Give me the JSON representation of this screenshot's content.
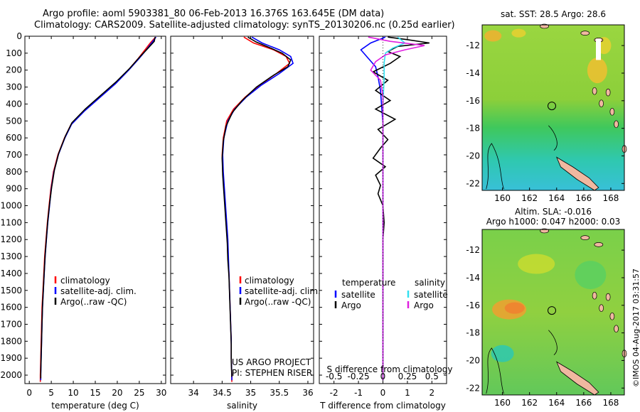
{
  "header": {
    "line1": "Argo profile: aoml 5903381_80 06-Feb-2013 16.376S 163.645E (DM data)",
    "line2": "Climatology: CARS2009. Satellite-adjusted climatology: synTS_20130206.nc (0.25d earlier)"
  },
  "colors": {
    "climatology": "#ff0000",
    "satellite": "#0000ff",
    "argo": "#000000",
    "s_satellite": "#33e0f0",
    "s_argo": "#e020e0"
  },
  "depth_axis": {
    "ticks": [
      0,
      100,
      200,
      300,
      400,
      500,
      600,
      700,
      800,
      900,
      1000,
      1100,
      1200,
      1300,
      1400,
      1500,
      1600,
      1700,
      1800,
      1900,
      2000
    ],
    "range": [
      0,
      2050
    ]
  },
  "chart_data": [
    {
      "type": "line",
      "id": "temperature",
      "xlabel": "temperature (deg C)",
      "ylabel": "",
      "xlim": [
        -1,
        31
      ],
      "ylim": [
        2050,
        0
      ],
      "xticks": [
        0,
        5,
        10,
        15,
        20,
        25,
        30
      ],
      "legend": [
        "climatology",
        "satellite-adj. clim.",
        "Argo(..raw -QC)"
      ],
      "series": [
        {
          "name": "climatology",
          "color": "#ff0000",
          "points": [
            [
              28.7,
              5
            ],
            [
              27.5,
              40
            ],
            [
              26.3,
              80
            ],
            [
              24.8,
              130
            ],
            [
              22.5,
              200
            ],
            [
              19.5,
              280
            ],
            [
              16,
              360
            ],
            [
              12.5,
              440
            ],
            [
              9.5,
              520
            ],
            [
              8,
              600
            ],
            [
              6.5,
              700
            ],
            [
              5.5,
              800
            ],
            [
              4.9,
              900
            ],
            [
              4.5,
              1000
            ],
            [
              4.1,
              1100
            ],
            [
              3.8,
              1200
            ],
            [
              3.5,
              1300
            ],
            [
              3.3,
              1400
            ],
            [
              3.1,
              1500
            ],
            [
              2.9,
              1600
            ],
            [
              2.8,
              1700
            ],
            [
              2.7,
              1800
            ],
            [
              2.6,
              1900
            ],
            [
              2.5,
              2000
            ],
            [
              2.5,
              2040
            ]
          ]
        },
        {
          "name": "satellite-adj. clim.",
          "color": "#0000ff",
          "points": [
            [
              28.8,
              5
            ],
            [
              27.8,
              40
            ],
            [
              26.6,
              80
            ],
            [
              25,
              130
            ],
            [
              22.6,
              200
            ],
            [
              19.6,
              280
            ],
            [
              16.1,
              360
            ],
            [
              12.6,
              440
            ],
            [
              9.6,
              520
            ],
            [
              8.1,
              600
            ],
            [
              6.6,
              700
            ],
            [
              5.6,
              800
            ],
            [
              5,
              900
            ],
            [
              4.6,
              1000
            ],
            [
              4.2,
              1100
            ],
            [
              3.9,
              1200
            ],
            [
              3.6,
              1300
            ],
            [
              3.4,
              1400
            ],
            [
              3.2,
              1500
            ],
            [
              3,
              1600
            ],
            [
              2.9,
              1700
            ],
            [
              2.8,
              1800
            ],
            [
              2.7,
              1900
            ],
            [
              2.6,
              2000
            ],
            [
              2.6,
              2030
            ]
          ]
        },
        {
          "name": "Argo(..raw -QC)",
          "color": "#000000",
          "points": [
            [
              28.6,
              5
            ],
            [
              28.4,
              30
            ],
            [
              27,
              70
            ],
            [
              25.2,
              120
            ],
            [
              22.8,
              190
            ],
            [
              19.7,
              270
            ],
            [
              16.2,
              350
            ],
            [
              12.7,
              430
            ],
            [
              9.7,
              510
            ],
            [
              8.2,
              590
            ],
            [
              6.7,
              690
            ],
            [
              5.7,
              790
            ],
            [
              5.1,
              890
            ],
            [
              4.6,
              990
            ],
            [
              4.2,
              1090
            ],
            [
              3.9,
              1190
            ],
            [
              3.6,
              1290
            ],
            [
              3.4,
              1390
            ],
            [
              3.2,
              1490
            ],
            [
              3,
              1590
            ],
            [
              2.9,
              1690
            ],
            [
              2.8,
              1790
            ],
            [
              2.7,
              1890
            ],
            [
              2.6,
              1990
            ],
            [
              2.6,
              2020
            ]
          ]
        }
      ]
    },
    {
      "type": "line",
      "id": "salinity",
      "xlabel": "salinity",
      "ylabel": "",
      "xlim": [
        33.6,
        36.1
      ],
      "ylim": [
        2050,
        0
      ],
      "xticks": [
        34,
        34.5,
        35,
        35.5,
        36
      ],
      "legend": [
        "climatology",
        "satellite-adj. clim.",
        "Argo(..raw -QC)"
      ],
      "annotation": [
        "US ARGO PROJECT",
        "PI: STEPHEN RISER"
      ],
      "series": [
        {
          "name": "climatology",
          "color": "#ff0000",
          "points": [
            [
              34.88,
              5
            ],
            [
              35.05,
              40
            ],
            [
              35.4,
              80
            ],
            [
              35.62,
              120
            ],
            [
              35.68,
              160
            ],
            [
              35.45,
              220
            ],
            [
              35.15,
              290
            ],
            [
              34.9,
              360
            ],
            [
              34.7,
              430
            ],
            [
              34.58,
              500
            ],
            [
              34.52,
              600
            ],
            [
              34.5,
              700
            ],
            [
              34.51,
              800
            ],
            [
              34.53,
              900
            ],
            [
              34.55,
              1000
            ],
            [
              34.57,
              1100
            ],
            [
              34.59,
              1200
            ],
            [
              34.6,
              1300
            ],
            [
              34.62,
              1400
            ],
            [
              34.63,
              1500
            ],
            [
              34.64,
              1600
            ],
            [
              34.65,
              1700
            ],
            [
              34.66,
              1800
            ],
            [
              34.66,
              1900
            ],
            [
              34.67,
              2000
            ],
            [
              34.67,
              2040
            ]
          ]
        },
        {
          "name": "satellite-adj. clim.",
          "color": "#0000ff",
          "points": [
            [
              35.02,
              5
            ],
            [
              35.2,
              40
            ],
            [
              35.5,
              80
            ],
            [
              35.7,
              120
            ],
            [
              35.74,
              160
            ],
            [
              35.5,
              220
            ],
            [
              35.18,
              290
            ],
            [
              34.92,
              360
            ],
            [
              34.72,
              430
            ],
            [
              34.6,
              500
            ],
            [
              34.53,
              600
            ],
            [
              34.51,
              700
            ],
            [
              34.52,
              800
            ],
            [
              34.54,
              900
            ],
            [
              34.56,
              1000
            ],
            [
              34.58,
              1100
            ],
            [
              34.6,
              1200
            ],
            [
              34.61,
              1300
            ],
            [
              34.62,
              1400
            ],
            [
              34.63,
              1500
            ],
            [
              34.64,
              1600
            ],
            [
              34.65,
              1700
            ],
            [
              34.66,
              1800
            ],
            [
              34.66,
              1900
            ],
            [
              34.67,
              2000
            ],
            [
              34.67,
              2030
            ]
          ]
        },
        {
          "name": "Argo(..raw -QC)",
          "color": "#000000",
          "points": [
            [
              34.95,
              5
            ],
            [
              35.1,
              35
            ],
            [
              35.35,
              70
            ],
            [
              35.55,
              100
            ],
            [
              35.7,
              140
            ],
            [
              35.65,
              180
            ],
            [
              35.4,
              230
            ],
            [
              35.1,
              300
            ],
            [
              34.85,
              380
            ],
            [
              34.68,
              450
            ],
            [
              34.57,
              530
            ],
            [
              34.52,
              620
            ],
            [
              34.5,
              720
            ],
            [
              34.51,
              820
            ],
            [
              34.53,
              920
            ],
            [
              34.55,
              1020
            ],
            [
              34.57,
              1120
            ],
            [
              34.59,
              1220
            ],
            [
              34.6,
              1320
            ],
            [
              34.62,
              1420
            ],
            [
              34.63,
              1520
            ],
            [
              34.64,
              1620
            ],
            [
              34.65,
              1720
            ],
            [
              34.66,
              1820
            ],
            [
              34.66,
              1920
            ],
            [
              34.67,
              2010
            ]
          ]
        }
      ]
    },
    {
      "type": "line",
      "id": "difference",
      "xlabel": "T difference from climatology",
      "xlabel_top": "S difference from climatology",
      "xlim": [
        -2.6,
        2.6
      ],
      "ylim": [
        2050,
        0
      ],
      "xticks": [
        -2,
        -1,
        0,
        1,
        2
      ],
      "xticklabels": [
        "-2",
        "-1",
        "0",
        "1",
        "2"
      ],
      "xticks_top": [
        -2,
        -1,
        0,
        1,
        2
      ],
      "xticklabels_top": [
        "-0.5",
        "-0.25",
        "0",
        "0.25",
        "0.5"
      ],
      "legend_headers": [
        "temperature",
        "salinity"
      ],
      "legend": [
        "satellite",
        "Argo",
        "satellite",
        "Argo"
      ],
      "series": [
        {
          "name": "T satellite",
          "color": "#0000ff",
          "points": [
            [
              0.1,
              5
            ],
            [
              -0.5,
              40
            ],
            [
              -0.9,
              80
            ],
            [
              -0.6,
              130
            ],
            [
              -0.3,
              180
            ],
            [
              -0.2,
              240
            ],
            [
              -0.1,
              320
            ],
            [
              -0.05,
              420
            ],
            [
              0,
              520
            ],
            [
              0,
              700
            ],
            [
              0,
              900
            ],
            [
              0,
              1100
            ],
            [
              0,
              1300
            ],
            [
              0,
              1500
            ],
            [
              0,
              1700
            ],
            [
              0,
              1900
            ],
            [
              0,
              2030
            ]
          ]
        },
        {
          "name": "T Argo",
          "color": "#000000",
          "points": [
            [
              0.2,
              5
            ],
            [
              1.0,
              20
            ],
            [
              1.9,
              40
            ],
            [
              0.6,
              60
            ],
            [
              0.2,
              90
            ],
            [
              0.7,
              120
            ],
            [
              0.3,
              160
            ],
            [
              -0.4,
              210
            ],
            [
              0.2,
              260
            ],
            [
              -0.3,
              320
            ],
            [
              0.3,
              380
            ],
            [
              -0.3,
              430
            ],
            [
              0.5,
              490
            ],
            [
              -0.2,
              550
            ],
            [
              0.2,
              610
            ],
            [
              -0.1,
              660
            ],
            [
              -0.4,
              720
            ],
            [
              0.1,
              770
            ],
            [
              -0.3,
              820
            ],
            [
              -0.1,
              880
            ],
            [
              -0.2,
              930
            ],
            [
              0,
              1000
            ],
            [
              0.05,
              1100
            ],
            [
              0,
              1200
            ],
            [
              0,
              1400
            ],
            [
              0,
              1600
            ],
            [
              0,
              1800
            ],
            [
              0,
              2020
            ]
          ]
        },
        {
          "name": "S satellite",
          "color": "#33e0f0",
          "points": [
            [
              0.6,
              5
            ],
            [
              0.9,
              40
            ],
            [
              0.4,
              70
            ],
            [
              0.1,
              100
            ],
            [
              0.05,
              160
            ],
            [
              0.05,
              250
            ],
            [
              0,
              400
            ],
            [
              0,
              600
            ],
            [
              0,
              800
            ],
            [
              0,
              1000
            ],
            [
              0,
              1300
            ],
            [
              0,
              1600
            ],
            [
              0,
              2030
            ]
          ]
        },
        {
          "name": "S Argo",
          "color": "#e020e0",
          "points": [
            [
              -0.6,
              5
            ],
            [
              0.3,
              30
            ],
            [
              1.7,
              55
            ],
            [
              0.9,
              80
            ],
            [
              0.1,
              110
            ],
            [
              -0.3,
              150
            ],
            [
              -0.5,
              200
            ],
            [
              -0.1,
              260
            ],
            [
              0,
              350
            ],
            [
              0,
              500
            ],
            [
              0,
              800
            ],
            [
              0,
              1200
            ],
            [
              0,
              1600
            ],
            [
              0,
              2030
            ]
          ]
        }
      ]
    },
    {
      "type": "heatmap",
      "id": "sst_map",
      "title": "sat. SST: 28.5  Argo: 28.6",
      "xlim": [
        158.5,
        169
      ],
      "ylim": [
        -22.5,
        -10.5
      ],
      "xticks": [
        160,
        162,
        164,
        166,
        168
      ],
      "yticks": [
        -12,
        -14,
        -16,
        -18,
        -20,
        -22
      ],
      "argo_marker": [
        163.645,
        -16.376
      ]
    },
    {
      "type": "heatmap",
      "id": "sla_map",
      "title_line1": "Altim. SLA: -0.016",
      "title_line2": "Argo h1000: 0.047  h2000: 0.03",
      "xlim": [
        158.5,
        169
      ],
      "ylim": [
        -22.5,
        -10.5
      ],
      "xticks": [
        160,
        162,
        164,
        166,
        168
      ],
      "yticks": [
        -12,
        -14,
        -16,
        -18,
        -20,
        -22
      ],
      "argo_marker": [
        163.645,
        -16.376
      ]
    }
  ],
  "footer": {
    "stamp": "©IMOS 04-Aug-2017 03:31:57"
  }
}
